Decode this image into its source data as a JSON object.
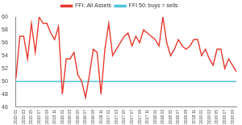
{
  "chart_data": {
    "type": "line",
    "categories": [
      "2015 01",
      null,
      "2015 03",
      null,
      "2015 05",
      null,
      "2015 07",
      null,
      "2015 09",
      null,
      "2015 11",
      null,
      "2016 01",
      null,
      "2016 03",
      null,
      "2016 05",
      null,
      "2016 07",
      null,
      "2016 09",
      null,
      "2016 11",
      null,
      "2017 01",
      null,
      "2017 03",
      null,
      "2017 05",
      null,
      "2017 07",
      null,
      "2017 09",
      null,
      "2017 11",
      null,
      "2018 01",
      null,
      "2018 03",
      null,
      "2018 05",
      null,
      "2018 07",
      null,
      "2018 09",
      null,
      "2018 11",
      null,
      "2019 01",
      null,
      "2019 03",
      null,
      "2019 05",
      null,
      "2019 07",
      null,
      "2019 09",
      null
    ],
    "series": [
      {
        "name": "FFI: All Assets",
        "color": "#e8392e",
        "values": [
          50.5,
          57,
          57,
          53.5,
          59,
          54.5,
          60,
          59,
          59,
          57.5,
          56.5,
          58.5,
          48,
          53.5,
          53.5,
          54.5,
          51,
          50,
          47.5,
          51,
          55,
          54.5,
          48,
          55,
          59,
          54,
          55,
          56,
          57,
          57.5,
          55.5,
          57,
          56,
          58,
          57.5,
          57,
          56.5,
          55.5,
          60,
          56,
          54,
          55,
          56.5,
          55.5,
          55,
          55.5,
          56.5,
          56.5,
          54,
          55,
          53.5,
          52.5,
          55,
          55,
          52,
          53.5,
          52.5,
          51.5
        ]
      },
      {
        "name": "FFI 50: buys = sells",
        "color": "#4fc3d9",
        "values": [
          50,
          50,
          50,
          50,
          50,
          50,
          50,
          50,
          50,
          50,
          50,
          50,
          50,
          50,
          50,
          50,
          50,
          50,
          50,
          50,
          50,
          50,
          50,
          50,
          50,
          50,
          50,
          50,
          50,
          50,
          50,
          50,
          50,
          50,
          50,
          50,
          50,
          50,
          50,
          50,
          50,
          50,
          50,
          50,
          50,
          50,
          50,
          50,
          50,
          50,
          50,
          50,
          50,
          50,
          50,
          50,
          50,
          50
        ]
      }
    ],
    "ylim": [
      46,
      60
    ],
    "yticks": [
      46,
      48,
      50,
      52,
      54,
      56,
      58,
      60
    ],
    "grid": false,
    "legend": "top"
  }
}
